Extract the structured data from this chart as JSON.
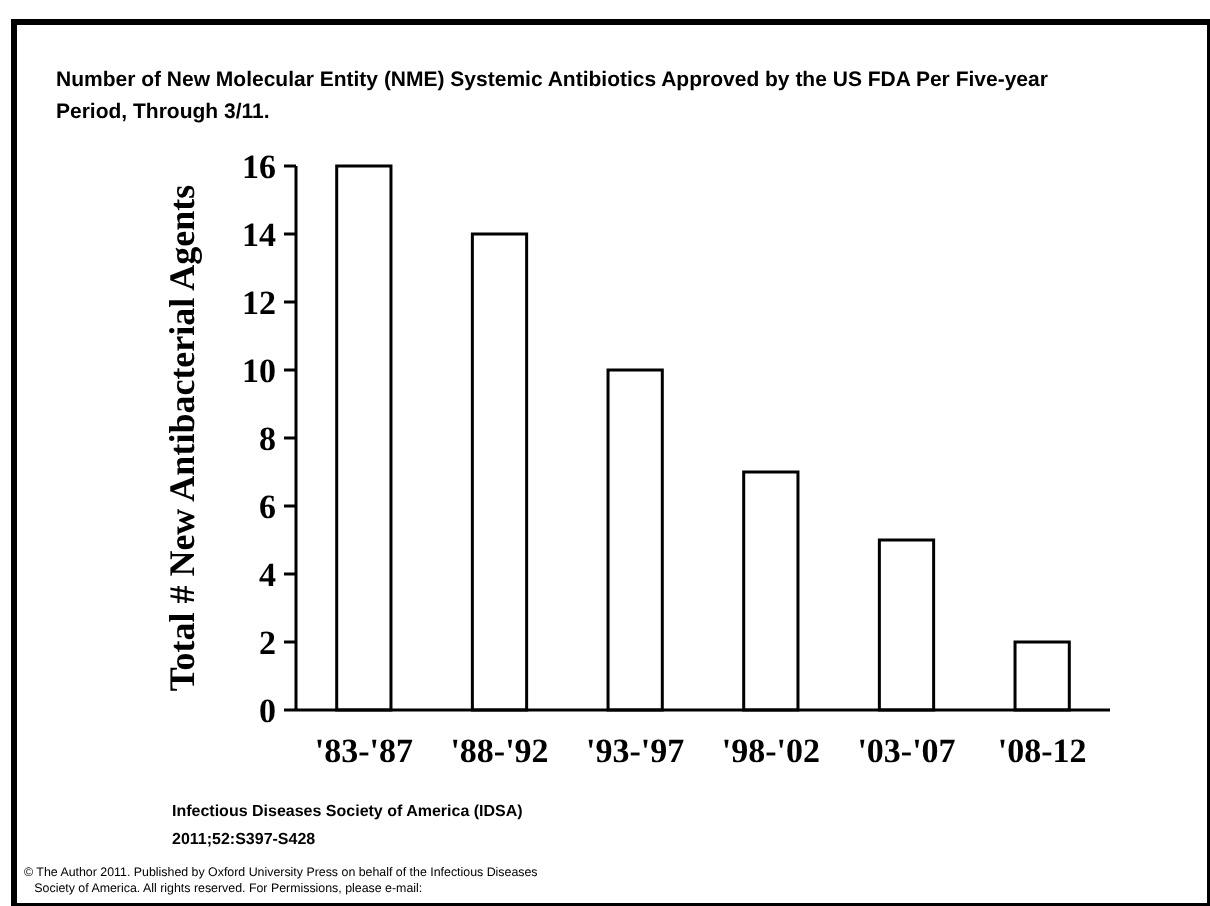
{
  "chart_data": {
    "type": "bar",
    "title": "Number of New Molecular Entity (NME) Systemic Antibiotics Approved by the US FDA Per Five-year\nPeriod, Through 3/11.",
    "ylabel": "Total # New Antibacterial Agents",
    "categories": [
      "'83-'87",
      "'88-'92",
      "'93-'97",
      "'98-'02",
      "'03-'07",
      "'08-12"
    ],
    "values": [
      16,
      14,
      10,
      7,
      5,
      2
    ],
    "color": "#ffffff",
    "ylim": [
      0,
      16
    ],
    "yticks": [
      0,
      2,
      4,
      6,
      8,
      10,
      12,
      14,
      16
    ],
    "grid": false,
    "annotations": [
      "Infectious Diseases Society of America (IDSA)\n2011;52:S397-S428",
      "© The Author 2011. Published by Oxford University Press on behalf of the Infectious Diseases\n   Society of America. All rights reserved. For Permissions, please e-mail:"
    ]
  }
}
